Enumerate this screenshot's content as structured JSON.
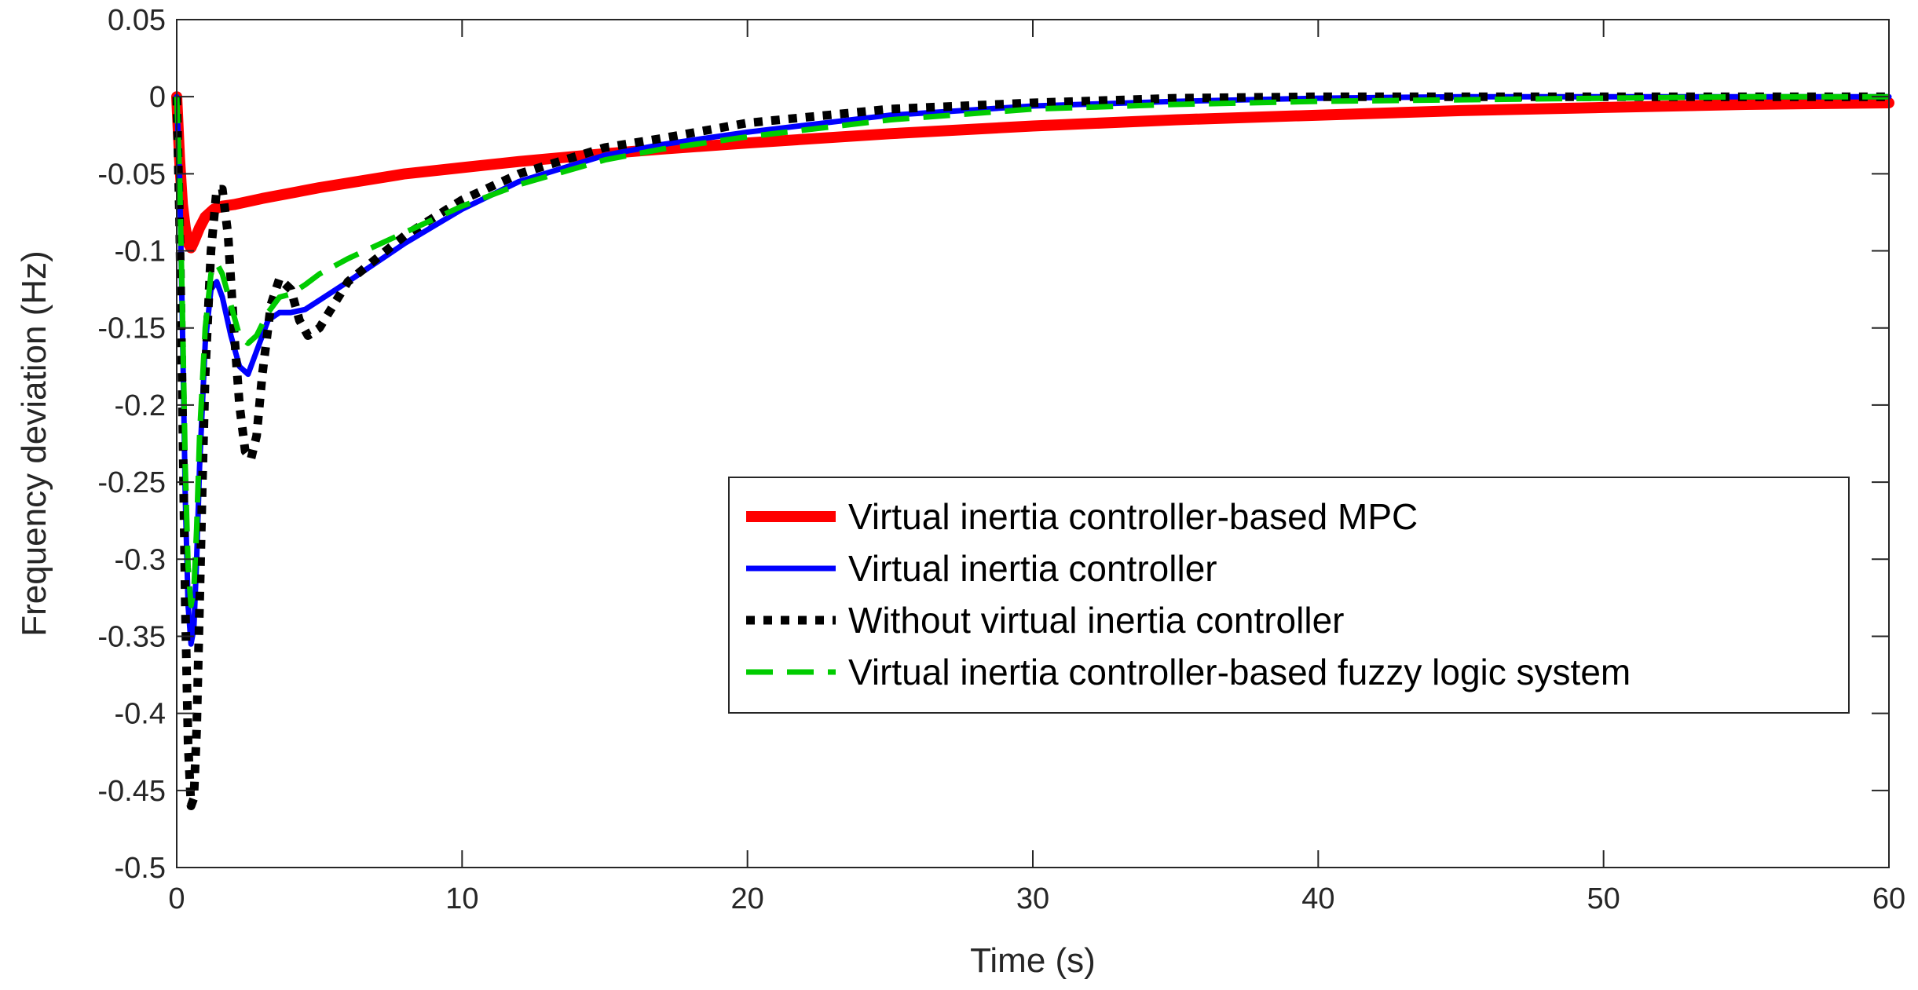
{
  "chart_data": {
    "type": "line",
    "title": "",
    "xlabel": "Time (s)",
    "ylabel": "Frequency deviation (Hz)",
    "xlim": [
      0,
      60
    ],
    "ylim": [
      -0.5,
      0.05
    ],
    "xticks": [
      0,
      10,
      20,
      30,
      40,
      50,
      60
    ],
    "xtick_labels": [
      "0",
      "10",
      "20",
      "30",
      "40",
      "50",
      "60"
    ],
    "yticks": [
      0.05,
      0,
      -0.05,
      -0.1,
      -0.15,
      -0.2,
      -0.25,
      -0.3,
      -0.35,
      -0.4,
      -0.45,
      -0.5
    ],
    "ytick_labels": [
      "0.05",
      "0",
      "-0.05",
      "-0.1",
      "-0.15",
      "-0.2",
      "-0.25",
      "-0.3",
      "-0.35",
      "-0.4",
      "-0.45",
      "-0.5"
    ],
    "grid": false,
    "legend_position": "bottom-right",
    "series": [
      {
        "name": "Virtual inertia controller-based MPC",
        "color": "#ff0000",
        "style": "solid",
        "width": 14,
        "x": [
          0,
          0.1,
          0.2,
          0.3,
          0.4,
          0.5,
          0.6,
          0.8,
          1.0,
          1.3,
          1.6,
          2,
          3,
          5,
          8,
          10,
          12,
          15,
          17,
          20,
          25,
          30,
          35,
          40,
          45,
          50,
          55,
          60
        ],
        "y": [
          0,
          -0.04,
          -0.07,
          -0.085,
          -0.095,
          -0.098,
          -0.094,
          -0.085,
          -0.078,
          -0.073,
          -0.071,
          -0.07,
          -0.066,
          -0.059,
          -0.05,
          -0.046,
          -0.042,
          -0.037,
          -0.034,
          -0.03,
          -0.024,
          -0.019,
          -0.015,
          -0.012,
          -0.009,
          -0.007,
          -0.005,
          -0.004
        ]
      },
      {
        "name": "Virtual inertia controller",
        "color": "#0000ff",
        "style": "solid",
        "width": 7,
        "x": [
          0,
          0.1,
          0.2,
          0.3,
          0.4,
          0.5,
          0.6,
          0.7,
          0.8,
          1.0,
          1.2,
          1.4,
          1.6,
          1.9,
          2.2,
          2.5,
          2.8,
          3.2,
          3.6,
          4.0,
          4.5,
          5,
          6,
          8,
          10,
          12,
          15,
          17,
          20,
          25,
          30,
          35,
          40,
          45,
          50,
          55,
          60
        ],
        "y": [
          0,
          -0.05,
          -0.15,
          -0.26,
          -0.33,
          -0.355,
          -0.345,
          -0.3,
          -0.24,
          -0.16,
          -0.125,
          -0.12,
          -0.13,
          -0.155,
          -0.175,
          -0.18,
          -0.165,
          -0.145,
          -0.14,
          -0.14,
          -0.138,
          -0.132,
          -0.12,
          -0.095,
          -0.073,
          -0.055,
          -0.038,
          -0.031,
          -0.023,
          -0.012,
          -0.006,
          -0.003,
          -0.001,
          0,
          0,
          0,
          0
        ]
      },
      {
        "name": "Without virtual inertia controller",
        "color": "#000000",
        "style": "dotted",
        "width": 11,
        "x": [
          0,
          0.1,
          0.2,
          0.3,
          0.4,
          0.5,
          0.6,
          0.7,
          0.8,
          0.9,
          1.0,
          1.2,
          1.4,
          1.6,
          1.8,
          2.0,
          2.2,
          2.4,
          2.6,
          2.8,
          3.0,
          3.3,
          3.6,
          4.0,
          4.3,
          4.6,
          5.0,
          5.5,
          6,
          7,
          8,
          10,
          12,
          15,
          17,
          20,
          25,
          30,
          35,
          40,
          45,
          50,
          55,
          60
        ],
        "y": [
          0,
          -0.08,
          -0.2,
          -0.33,
          -0.42,
          -0.46,
          -0.455,
          -0.41,
          -0.33,
          -0.25,
          -0.18,
          -0.1,
          -0.06,
          -0.06,
          -0.09,
          -0.15,
          -0.2,
          -0.23,
          -0.235,
          -0.22,
          -0.18,
          -0.135,
          -0.118,
          -0.125,
          -0.145,
          -0.155,
          -0.15,
          -0.135,
          -0.12,
          -0.105,
          -0.09,
          -0.067,
          -0.05,
          -0.033,
          -0.027,
          -0.017,
          -0.008,
          -0.004,
          -0.001,
          0,
          0,
          0,
          0,
          0
        ]
      },
      {
        "name": "Virtual inertia controller-based fuzzy logic system",
        "color": "#00cc00",
        "style": "dashed",
        "width": 7,
        "x": [
          0,
          0.1,
          0.2,
          0.3,
          0.4,
          0.5,
          0.6,
          0.7,
          0.8,
          1.0,
          1.2,
          1.4,
          1.6,
          1.9,
          2.2,
          2.5,
          2.8,
          3.2,
          3.6,
          4.0,
          4.5,
          5,
          6,
          8,
          10,
          12,
          15,
          17,
          20,
          25,
          30,
          35,
          40,
          45,
          50,
          55,
          60
        ],
        "y": [
          0,
          -0.05,
          -0.14,
          -0.24,
          -0.305,
          -0.33,
          -0.32,
          -0.28,
          -0.22,
          -0.15,
          -0.115,
          -0.108,
          -0.115,
          -0.135,
          -0.155,
          -0.16,
          -0.155,
          -0.14,
          -0.13,
          -0.128,
          -0.122,
          -0.115,
          -0.105,
          -0.088,
          -0.071,
          -0.057,
          -0.041,
          -0.034,
          -0.026,
          -0.015,
          -0.008,
          -0.005,
          -0.003,
          -0.002,
          -0.001,
          0,
          0
        ]
      }
    ]
  }
}
